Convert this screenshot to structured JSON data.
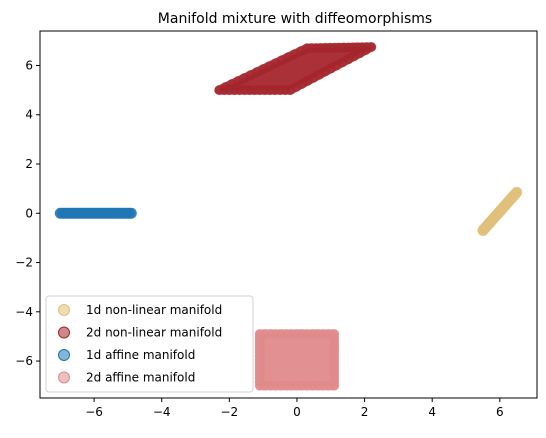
{
  "chart_data": {
    "type": "scatter",
    "title": "Manifold mixture with diffeomorphisms",
    "xlabel": "",
    "ylabel": "",
    "xlim": [
      -7.6,
      7.1
    ],
    "ylim": [
      -7.5,
      7.4
    ],
    "xticks": [
      -6,
      -4,
      -2,
      0,
      2,
      4,
      6
    ],
    "yticks": [
      -6,
      -4,
      -2,
      0,
      2,
      4,
      6
    ],
    "xtick_labels": [
      "−6",
      "−4",
      "−2",
      "0",
      "2",
      "4",
      "6"
    ],
    "ytick_labels": [
      "−6",
      "−4",
      "−2",
      "0",
      "2",
      "4",
      "6"
    ],
    "grid": false,
    "legend_position": "lower-left",
    "series": [
      {
        "name": "1d non-linear manifold",
        "color": "#e0c07a",
        "shape": "segment",
        "from": [
          5.5,
          -0.7
        ],
        "to": [
          6.5,
          0.85
        ]
      },
      {
        "name": "2d non-linear manifold",
        "color": "#a4262c",
        "shape": "parallelogram",
        "corners": [
          [
            -2.3,
            5.0
          ],
          [
            0.3,
            6.7
          ],
          [
            2.2,
            6.75
          ],
          [
            -0.2,
            5.0
          ]
        ]
      },
      {
        "name": "1d affine manifold",
        "color": "#1f77b4",
        "shape": "segment",
        "from": [
          -7.0,
          0.0
        ],
        "to": [
          -4.9,
          0.0
        ]
      },
      {
        "name": "2d affine manifold",
        "color": "#e08a8c",
        "shape": "rectangle",
        "corners": [
          [
            -1.1,
            -7.0
          ],
          [
            1.1,
            -7.0
          ],
          [
            1.1,
            -4.9
          ],
          [
            -1.1,
            -4.9
          ]
        ]
      }
    ]
  }
}
